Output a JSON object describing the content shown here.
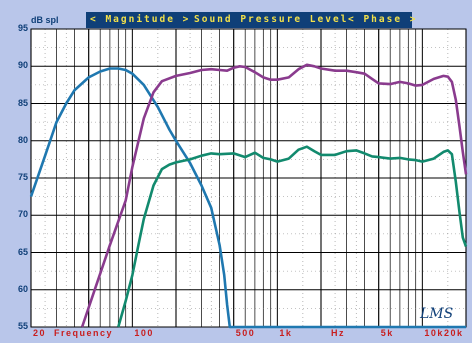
{
  "header": {
    "magnitude": "< Magnitude >",
    "title": "Sound Pressure Level",
    "phase": "< Phase >"
  },
  "logo_text": "LMS",
  "chart_data": {
    "type": "line",
    "title": "Sound Pressure Level",
    "ylabel": "dB spl",
    "xlabel": "Frequency",
    "x_unit": "Hz",
    "xscale": "log",
    "xlim": [
      20,
      20000
    ],
    "ylim": [
      55,
      95
    ],
    "yticks": [
      55,
      60,
      65,
      70,
      75,
      80,
      85,
      90,
      95
    ],
    "xtick_labels": [
      {
        "value": 20,
        "label": "20"
      },
      {
        "value": 100,
        "label": "100"
      },
      {
        "value": 500,
        "label": "500"
      },
      {
        "value": 1000,
        "label": "1k"
      },
      {
        "value": 5000,
        "label": "5k"
      },
      {
        "value": 10000,
        "label": "10k"
      },
      {
        "value": 20000,
        "label": "20k"
      }
    ],
    "grid": true,
    "series": [
      {
        "color": "#1f78b0",
        "x": [
          20,
          25,
          30,
          35,
          40,
          50,
          60,
          70,
          80,
          90,
          100,
          120,
          150,
          180,
          200,
          250,
          300,
          350,
          400,
          430,
          450,
          470,
          480,
          500,
          600,
          1000,
          5000,
          20000
        ],
        "y": [
          72.5,
          78,
          82.5,
          85,
          86.8,
          88.5,
          89.3,
          89.7,
          89.7,
          89.5,
          89,
          87.5,
          84.5,
          81.5,
          80,
          77,
          74,
          71,
          66,
          62,
          58,
          55,
          55,
          55,
          55,
          55,
          55,
          55
        ]
      },
      {
        "color": "#8a3b8e",
        "x": [
          45,
          55,
          70,
          90,
          100,
          120,
          140,
          160,
          200,
          250,
          300,
          350,
          400,
          450,
          500,
          550,
          600,
          700,
          800,
          900,
          1000,
          1200,
          1400,
          1600,
          1800,
          2000,
          2500,
          3000,
          3500,
          4000,
          4500,
          5000,
          6000,
          7000,
          8000,
          9000,
          10000,
          12000,
          14000,
          15000,
          16000,
          17000,
          18000,
          19000,
          20000
        ],
        "y": [
          55,
          60,
          66,
          72,
          76.5,
          83,
          86.5,
          88,
          88.7,
          89.1,
          89.5,
          89.6,
          89.5,
          89.4,
          89.8,
          90,
          89.9,
          89.2,
          88.5,
          88.2,
          88.2,
          88.5,
          89.6,
          90.2,
          90,
          89.7,
          89.4,
          89.4,
          89.2,
          89,
          88.3,
          87.7,
          87.6,
          87.9,
          87.7,
          87.4,
          87.5,
          88.3,
          88.7,
          88.6,
          87.9,
          85.5,
          82,
          78.5,
          75.5
        ]
      },
      {
        "color": "#128a6e",
        "x": [
          80,
          90,
          100,
          110,
          120,
          140,
          160,
          180,
          200,
          250,
          300,
          350,
          400,
          500,
          600,
          700,
          800,
          900,
          1000,
          1200,
          1400,
          1600,
          1800,
          2000,
          2500,
          3000,
          3500,
          4000,
          4500,
          5000,
          6000,
          7000,
          8000,
          9000,
          10000,
          12000,
          14000,
          15000,
          16000,
          17000,
          18000,
          19000,
          20000
        ],
        "y": [
          55,
          58.5,
          62,
          66,
          69.5,
          74,
          76.2,
          76.8,
          77.1,
          77.5,
          78,
          78.3,
          78.2,
          78.3,
          77.8,
          78.4,
          77.7,
          77.5,
          77.2,
          77.6,
          78.8,
          79.2,
          78.6,
          78.1,
          78.1,
          78.6,
          78.7,
          78.3,
          77.9,
          77.8,
          77.6,
          77.7,
          77.5,
          77.4,
          77.2,
          77.6,
          78.5,
          78.7,
          78.2,
          74.5,
          70.5,
          67,
          65.8
        ]
      }
    ]
  }
}
